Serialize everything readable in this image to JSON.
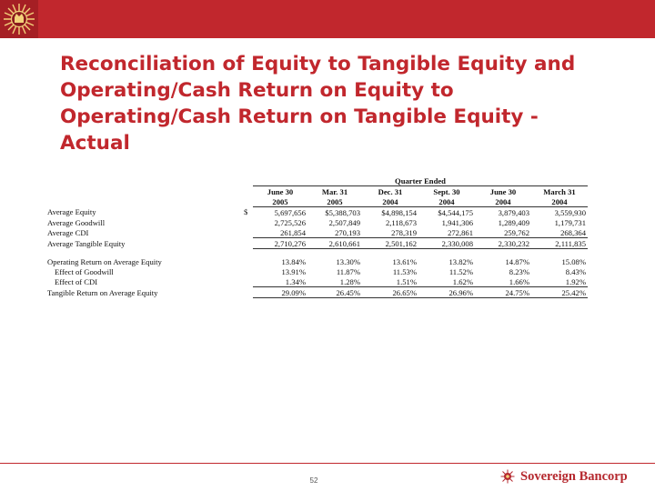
{
  "slide": {
    "title": "Reconciliation of Equity to Tangible Equity and Operating/Cash Return on Equity to Operating/Cash Return on Tangible Equity - Actual",
    "page_number": "52",
    "brand_name": "Sovereign Bancorp",
    "accent_color": "#c1272d"
  },
  "table": {
    "group_header": "Quarter Ended",
    "columns": [
      {
        "month": "June 30",
        "year": "2005"
      },
      {
        "month": "Mar. 31",
        "year": "2005"
      },
      {
        "month": "Dec. 31",
        "year": "2004"
      },
      {
        "month": "Sept. 30",
        "year": "2004"
      },
      {
        "month": "June 30",
        "year": "2004"
      },
      {
        "month": "March 31",
        "year": "2004"
      }
    ],
    "rows": [
      {
        "label": "Average Equity",
        "currency": "$",
        "values": [
          "5,697,656",
          "$5,388,703",
          "$4,898,154",
          "$4,544,175",
          "3,879,403",
          "3,559,930"
        ]
      },
      {
        "label": "Average Goodwill",
        "currency": "",
        "values": [
          "2,725,526",
          "2,507,849",
          "2,118,673",
          "1,941,306",
          "1,289,409",
          "1,179,731"
        ]
      },
      {
        "label": "Average CDI",
        "currency": "",
        "values": [
          "261,854",
          "270,193",
          "278,319",
          "272,861",
          "259,762",
          "268,364"
        ]
      },
      {
        "label": "Average Tangible Equity",
        "currency": "",
        "values": [
          "2,710,276",
          "2,610,661",
          "2,501,162",
          "2,330,008",
          "2,330,232",
          "2,111,835"
        ]
      },
      {
        "label": "Operating Return on Average Equity",
        "currency": "",
        "values": [
          "13.84%",
          "13.30%",
          "13.61%",
          "13.82%",
          "14.87%",
          "15.08%"
        ]
      },
      {
        "label": "Effect of Goodwill",
        "currency": "",
        "values": [
          "13.91%",
          "11.87%",
          "11.53%",
          "11.52%",
          "8.23%",
          "8.43%"
        ]
      },
      {
        "label": "Effect of CDI",
        "currency": "",
        "values": [
          "1.34%",
          "1.28%",
          "1.51%",
          "1.62%",
          "1.66%",
          "1.92%"
        ]
      },
      {
        "label": "Tangible Return on Average Equity",
        "currency": "",
        "values": [
          "29.09%",
          "26.45%",
          "26.65%",
          "26.96%",
          "24.75%",
          "25.42%"
        ]
      }
    ]
  }
}
